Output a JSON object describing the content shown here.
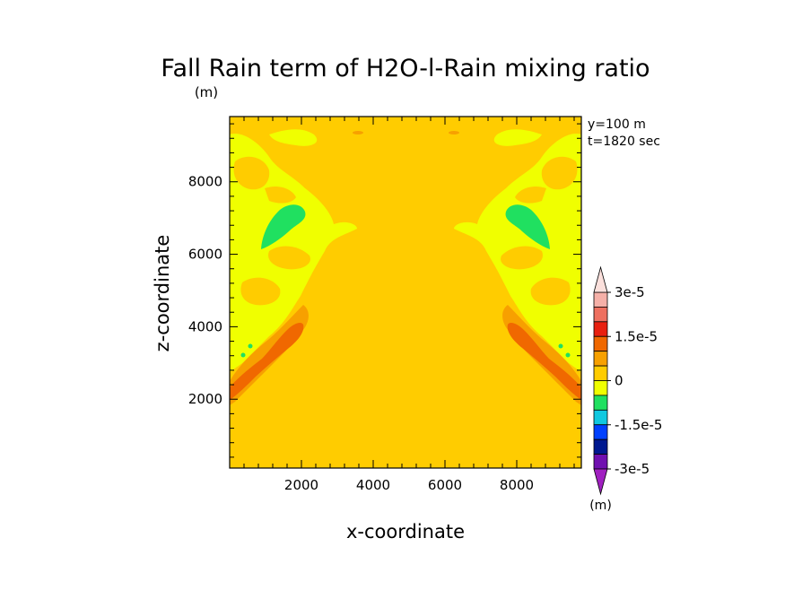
{
  "chart_data": {
    "type": "heatmap",
    "title": "Fall Rain term of H2O-l-Rain mixing ratio",
    "units_label": "(m)",
    "annotations": [
      "y=100 m",
      "t=1820 sec"
    ],
    "xlabel": "x-coordinate",
    "ylabel": "z-coordinate",
    "xlim": [
      0,
      9800
    ],
    "ylim": [
      100,
      9800
    ],
    "xticks": [
      "2000",
      "4000",
      "6000",
      "8000"
    ],
    "yticks": [
      "2000",
      "4000",
      "6000",
      "8000"
    ],
    "colorbar": {
      "unit": "(m)",
      "labels": [
        "3e-5",
        "1.5e-5",
        "0",
        "-1.5e-5",
        "-3e-5"
      ],
      "level_colors_top_to_bottom": [
        "#f5b0a8",
        "#ee7060",
        "#e82010",
        "#f06800",
        "#f7a000",
        "#ffcc00",
        "#f0ff00",
        "#20e060",
        "#10c8e0",
        "#0040ff",
        "#001890",
        "#7010b0"
      ],
      "level_values_top_to_bottom": [
        3e-05,
        2.5e-05,
        2e-05,
        1.5e-05,
        1e-05,
        5e-06,
        0,
        -5e-06,
        -1e-05,
        -1.5e-05,
        -2e-05,
        -2.5e-05
      ]
    },
    "field_description": {
      "background_level": "0",
      "features": [
        {
          "region": "left upper",
          "color": "#f0ff00",
          "sign": "small positive"
        },
        {
          "region": "left ~x=1200,z=6800",
          "color": "#20e060",
          "sign": "negative"
        },
        {
          "region": "left diagonal band x=300-2000, z=2000-4600",
          "color": "#f06800",
          "sign": "positive"
        },
        {
          "region": "right upper (mirror)",
          "color": "#f0ff00",
          "sign": "small positive"
        },
        {
          "region": "right ~x=8600,z=6800",
          "color": "#20e060",
          "sign": "negative"
        },
        {
          "region": "right diagonal band x=7800-9500, z=2000-4600",
          "color": "#f06800",
          "sign": "positive"
        }
      ]
    }
  }
}
